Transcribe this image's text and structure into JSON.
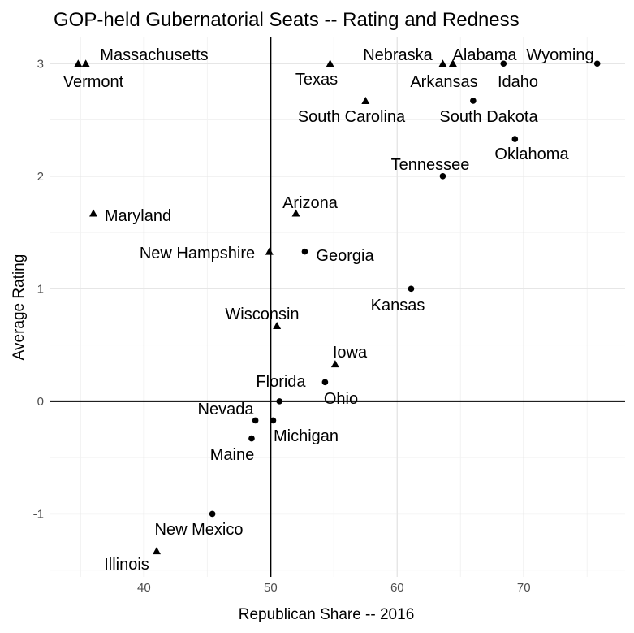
{
  "chart_data": {
    "type": "scatter",
    "title": "GOP-held Gubernatorial Seats -- Rating and Redness",
    "xlabel": "Republican Share -- 2016",
    "ylabel": "Average Rating",
    "xlim": [
      32.6,
      78.0
    ],
    "ylim": [
      -1.56,
      3.24
    ],
    "x_ticks": [
      40,
      50,
      60,
      70
    ],
    "y_ticks": [
      -1,
      0,
      1,
      2,
      3
    ],
    "x_tick_labels": [
      "40",
      "50",
      "60",
      "70"
    ],
    "y_tick_labels": [
      "-1",
      "0",
      "1",
      "2",
      "3"
    ],
    "grid": true,
    "reference_lines": {
      "vertical_x": 50,
      "horizontal_y": 0
    },
    "marker_colors": "#000000",
    "points": [
      {
        "label": "Massachusetts",
        "x": 35.4,
        "y": 3.0,
        "marker": "triangle"
      },
      {
        "label": "Vermont",
        "x": 34.8,
        "y": 3.0,
        "marker": "triangle"
      },
      {
        "label": "Texas",
        "x": 54.7,
        "y": 3.0,
        "marker": "triangle"
      },
      {
        "label": "Nebraska",
        "x": 63.6,
        "y": 3.0,
        "marker": "triangle"
      },
      {
        "label": "Alabama",
        "x": 64.4,
        "y": 3.0,
        "marker": "triangle"
      },
      {
        "label": "Wyoming",
        "x": 75.8,
        "y": 3.0,
        "marker": "circle"
      },
      {
        "label": "Arkansas",
        "x": 64.4,
        "y": 3.0,
        "marker": "triangle"
      },
      {
        "label": "Idaho",
        "x": 68.4,
        "y": 3.0,
        "marker": "circle"
      },
      {
        "label": "South Carolina",
        "x": 57.5,
        "y": 2.67,
        "marker": "triangle"
      },
      {
        "label": "South Dakota",
        "x": 66.0,
        "y": 2.67,
        "marker": "circle"
      },
      {
        "label": "Oklahoma",
        "x": 69.3,
        "y": 2.33,
        "marker": "circle"
      },
      {
        "label": "Tennessee",
        "x": 63.6,
        "y": 2.0,
        "marker": "circle"
      },
      {
        "label": "Maryland",
        "x": 36.0,
        "y": 1.67,
        "marker": "triangle"
      },
      {
        "label": "Arizona",
        "x": 52.0,
        "y": 1.67,
        "marker": "triangle"
      },
      {
        "label": "New Hampshire",
        "x": 49.9,
        "y": 1.33,
        "marker": "triangle"
      },
      {
        "label": "Georgia",
        "x": 52.7,
        "y": 1.33,
        "marker": "circle"
      },
      {
        "label": "Kansas",
        "x": 61.1,
        "y": 1.0,
        "marker": "circle"
      },
      {
        "label": "Wisconsin",
        "x": 50.5,
        "y": 0.67,
        "marker": "triangle"
      },
      {
        "label": "Iowa",
        "x": 55.1,
        "y": 0.33,
        "marker": "triangle"
      },
      {
        "label": "Florida",
        "x": 54.3,
        "y": 0.17,
        "marker": "circle"
      },
      {
        "label": "Ohio",
        "x": 50.7,
        "y": 0.0,
        "marker": "circle"
      },
      {
        "label": "Nevada",
        "x": 48.8,
        "y": -0.17,
        "marker": "circle"
      },
      {
        "label": "Michigan",
        "x": 50.2,
        "y": -0.17,
        "marker": "circle"
      },
      {
        "label": "Maine",
        "x": 48.5,
        "y": -0.33,
        "marker": "circle"
      },
      {
        "label": "New Mexico",
        "x": 45.4,
        "y": -1.0,
        "marker": "circle"
      },
      {
        "label": "Illinois",
        "x": 41.0,
        "y": -1.33,
        "marker": "triangle"
      }
    ]
  }
}
